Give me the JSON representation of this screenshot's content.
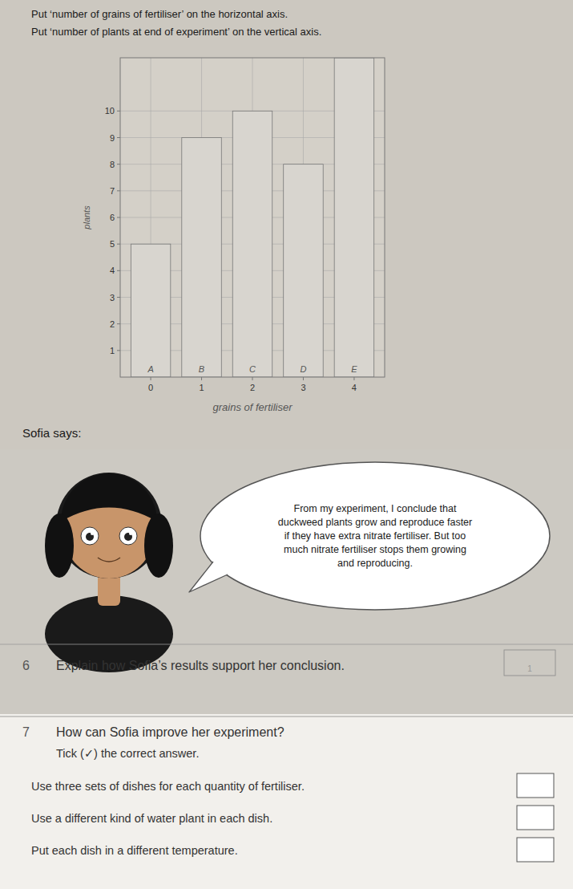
{
  "chart_data": {
    "type": "bar",
    "categories": [
      "A",
      "B",
      "C",
      "D",
      "E"
    ],
    "x": [
      0,
      1,
      2,
      3,
      4
    ],
    "values": [
      5,
      9,
      10,
      8,
      12
    ],
    "xlim": [
      -0.6,
      4.6
    ],
    "ylim": [
      0,
      12
    ],
    "xticks": [
      0,
      1,
      2,
      3,
      4
    ],
    "yticks": [
      1,
      2,
      3,
      4,
      5,
      6,
      7,
      8,
      9,
      10
    ],
    "x_label": "grains of fertiliser",
    "y_label": "plants",
    "color": "#d8d5cf",
    "grid": true
  },
  "page": {
    "instructions": [
      "Put ‘number of grains of fertiliser’ on the horizontal axis.",
      "Put ‘number of plants at end of experiment’ on the vertical axis."
    ],
    "sofia_says_label": "Sofia says:",
    "speech_bubble_text": "From my experiment, I conclude that\nduckweed plants grow and reproduce faster\nif they have extra nitrate fertiliser. But too\nmuch nitrate fertiliser stops them growing\nand reproducing.",
    "q6_number": "6",
    "q6_text": "Explain how Sofia’s results support her conclusion.",
    "q6_score": 1,
    "q7_number": "7",
    "q7_header": "How can Sofia improve her experiment?",
    "q7_tick_instruction": "Tick (✓) the correct answer.",
    "q7_options": [
      "Use three sets of dishes for each quantity of fertiliser.",
      "Use a different kind of water plant in each dish.",
      "Put each dish in a different temperature."
    ]
  }
}
